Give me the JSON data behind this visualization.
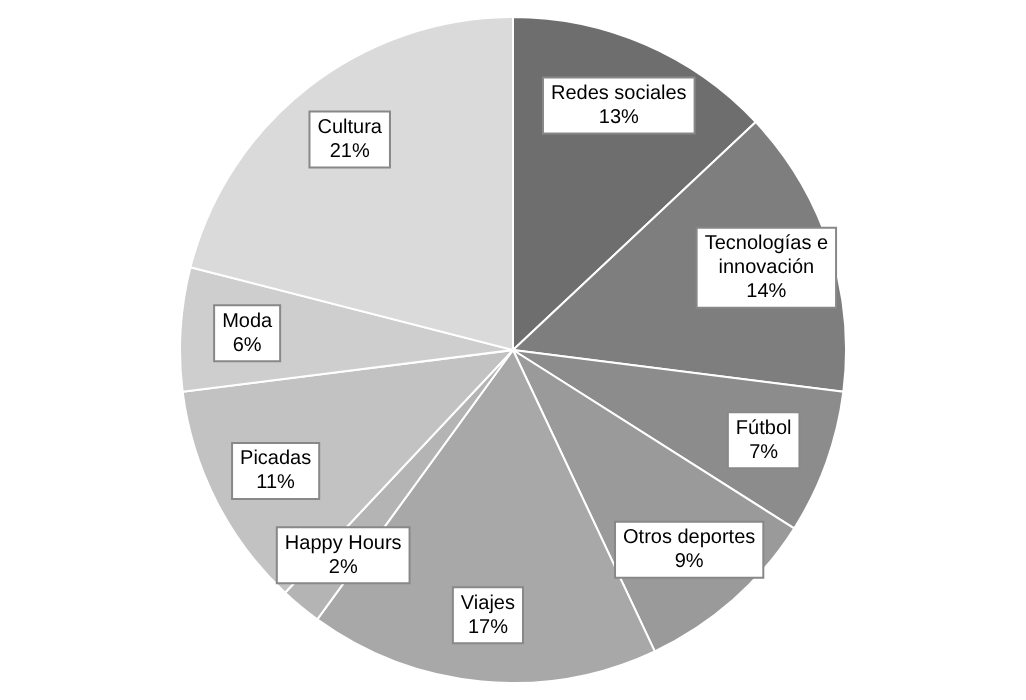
{
  "chart_data": {
    "type": "pie",
    "categories": [
      "Redes sociales",
      "Tecnologías e innovación",
      "Fútbol",
      "Otros deportes",
      "Viajes",
      "Happy Hours",
      "Picadas",
      "Moda",
      "Cultura"
    ],
    "values": [
      13,
      14,
      7,
      9,
      17,
      2,
      11,
      6,
      21
    ],
    "colors": [
      "#6e6e6e",
      "#7e7e7e",
      "#8c8c8c",
      "#9a9a9a",
      "#a8a8a8",
      "#b4b4b4",
      "#c2c2c2",
      "#cecece",
      "#dadada"
    ],
    "value_labels": [
      "13%",
      "14%",
      "7%",
      "9%",
      "17%",
      "2%",
      "11%",
      "6%",
      "21%"
    ],
    "legend": false
  }
}
